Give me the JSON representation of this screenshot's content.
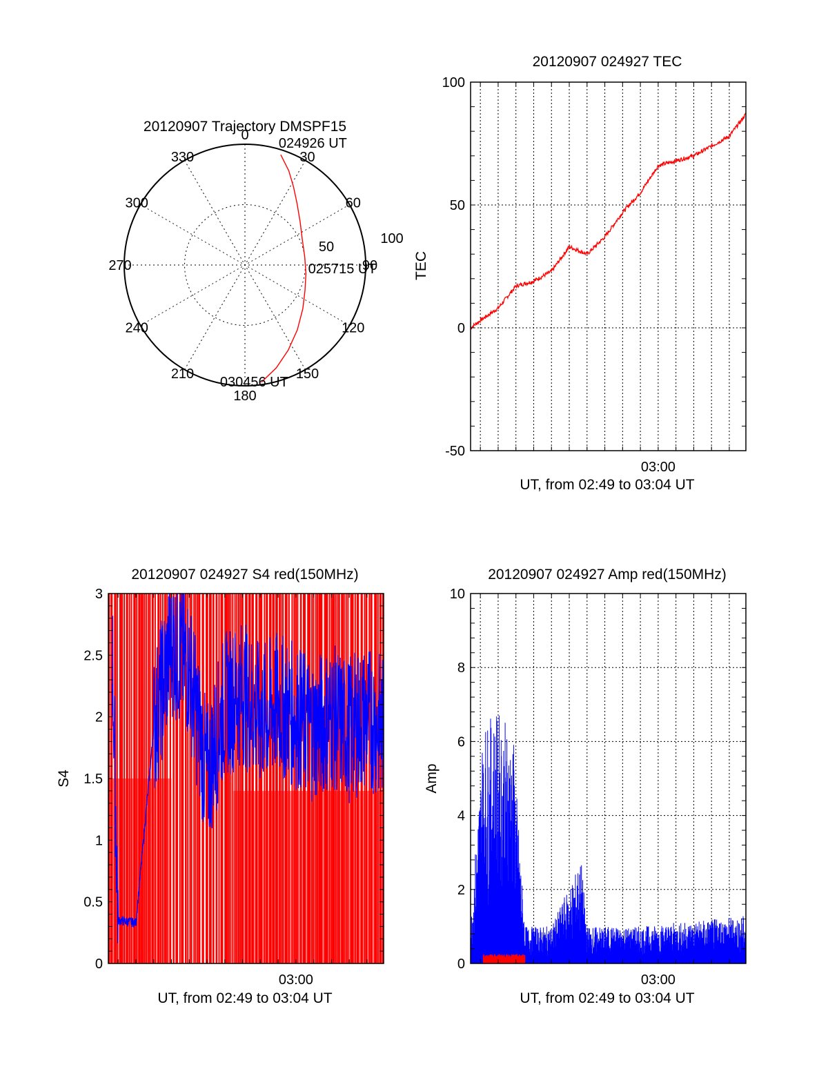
{
  "colors": {
    "red": "#ff0000",
    "blue": "#0000ff",
    "axis": "#000000",
    "grid": "#000000"
  },
  "chart_data": [
    {
      "id": "trajectory",
      "type": "polar",
      "title": "20120907 Trajectory DMSPF15",
      "angle_labels": [
        "0",
        "30",
        "60",
        "90",
        "120",
        "150",
        "180",
        "210",
        "240",
        "270",
        "300",
        "330"
      ],
      "radial_labels": [
        "50",
        "100"
      ],
      "rlim": [
        0,
        100
      ],
      "grid": true,
      "series": [
        {
          "color": "#ff0000",
          "points": [
            [
              18,
              96
            ],
            [
              25,
              86
            ],
            [
              32,
              76
            ],
            [
              40,
              67
            ],
            [
              52,
              58
            ],
            [
              66,
              52
            ],
            [
              82,
              50
            ],
            [
              98,
              51
            ],
            [
              113,
              54
            ],
            [
              127,
              60
            ],
            [
              141,
              69
            ],
            [
              153,
              79
            ],
            [
              163,
              89
            ],
            [
              172,
              98
            ]
          ]
        }
      ],
      "annotations": [
        {
          "text": "024926 UT",
          "at": [
            18,
            96
          ]
        },
        {
          "text": "025715 UT",
          "at": [
            82,
            50
          ]
        },
        {
          "text": "030456 UT",
          "at": [
            172,
            98
          ]
        }
      ]
    },
    {
      "id": "tec",
      "type": "line",
      "title": "20120907 024927 TEC",
      "ylabel": "TEC",
      "xlabel": "UT, from 02:49 to 03:04 UT",
      "xlim": [
        "02:49:27",
        "03:04:56"
      ],
      "ylim": [
        -50,
        100
      ],
      "yticks": [
        "-50",
        "0",
        "50",
        "100"
      ],
      "xticks": [
        "03:00"
      ],
      "grid": true,
      "series": [
        {
          "color": "#ff0000",
          "x": [
            "02:49:27",
            "02:50:00",
            "02:51:00",
            "02:52:00",
            "02:53:00",
            "02:54:00",
            "02:55:00",
            "02:56:00",
            "02:57:00",
            "02:58:00",
            "02:59:00",
            "03:00:00",
            "03:01:00",
            "03:02:00",
            "03:03:00",
            "03:04:00",
            "03:04:56"
          ],
          "y": [
            0,
            3,
            8,
            17,
            19,
            23,
            33,
            30,
            37,
            47,
            55,
            66,
            68,
            70,
            74,
            78,
            87
          ]
        }
      ]
    },
    {
      "id": "s4",
      "type": "line",
      "title": "20120907 024927 S4 red(150MHz)",
      "ylabel": "S4",
      "xlabel": "UT, from 02:49 to 03:04 UT",
      "xlim": [
        "02:49:27",
        "03:04:56"
      ],
      "ylim": [
        0,
        3
      ],
      "yticks": [
        "0",
        "0.5",
        "1",
        "1.5",
        "2",
        "2.5",
        "3"
      ],
      "xticks": [
        "03:00"
      ],
      "grid": false,
      "series": [
        {
          "color": "#ff0000",
          "description": "dense noise between 0 and 3"
        },
        {
          "color": "#0000ff",
          "x": [
            "02:49:40",
            "02:50:00",
            "02:51:00",
            "02:52:00",
            "02:53:00",
            "02:54:00",
            "02:55:00",
            "02:56:00",
            "02:57:00",
            "02:58:00",
            "02:59:00",
            "03:00:00",
            "03:01:00",
            "03:02:00",
            "03:03:00",
            "03:04:00",
            "03:04:56"
          ],
          "y": [
            2.6,
            0.35,
            0.33,
            1.9,
            2.6,
            2.4,
            1.5,
            2.1,
            2.2,
            2.0,
            2.1,
            2.0,
            1.9,
            2.0,
            1.9,
            2.0,
            1.9
          ]
        }
      ]
    },
    {
      "id": "amp",
      "type": "line",
      "title": "20120907 024927 Amp red(150MHz)",
      "ylabel": "Amp",
      "xlabel": "UT, from 02:49 to 03:04 UT",
      "xlim": [
        "02:49:27",
        "03:04:56"
      ],
      "ylim": [
        0,
        10
      ],
      "yticks": [
        "0",
        "2",
        "4",
        "6",
        "8",
        "10"
      ],
      "xticks": [
        "03:00"
      ],
      "grid": true,
      "series": [
        {
          "color": "#0000ff",
          "x": [
            "02:49:27",
            "02:50:10",
            "02:51:00",
            "02:51:50",
            "02:52:30",
            "02:54:00",
            "02:55:40",
            "02:56:00",
            "02:57:00",
            "02:59:00",
            "03:01:00",
            "03:03:00",
            "03:04:56"
          ],
          "y": [
            1.0,
            6.5,
            6.8,
            6.3,
            1.0,
            1.0,
            2.8,
            1.0,
            1.0,
            1.0,
            1.1,
            1.2,
            1.3
          ]
        },
        {
          "color": "#ff0000",
          "x": [
            "02:50:10",
            "02:52:30"
          ],
          "y": [
            0.2,
            0.2
          ]
        }
      ]
    }
  ]
}
